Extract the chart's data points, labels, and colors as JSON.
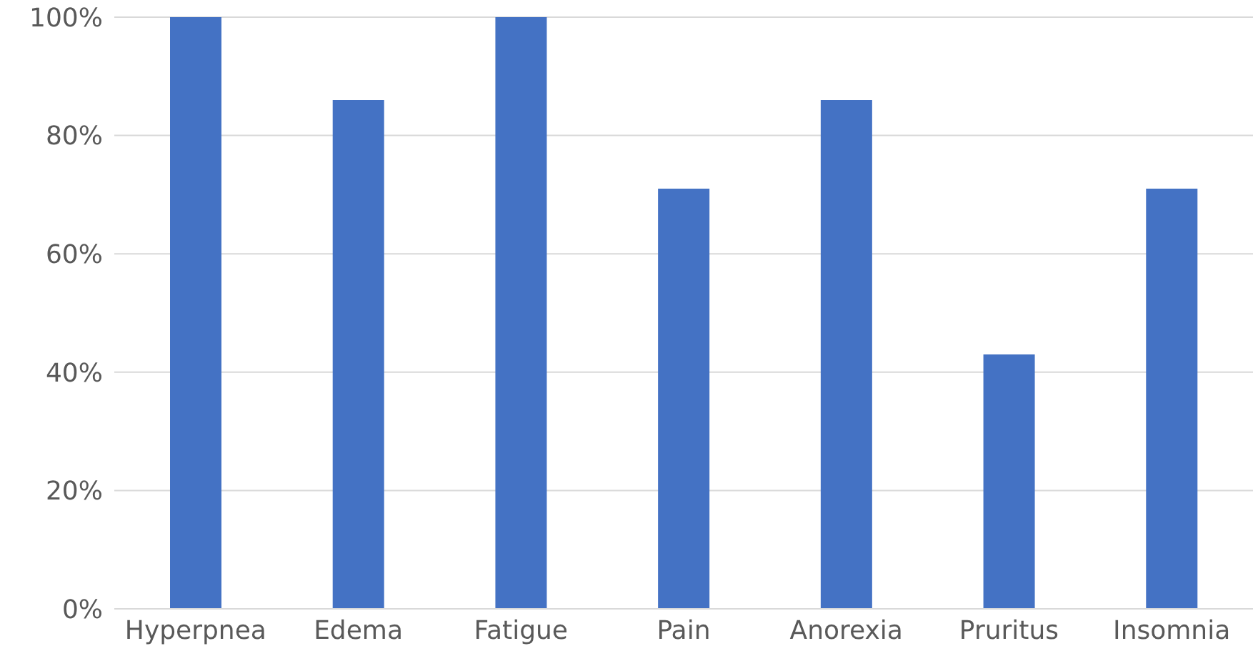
{
  "chart_data": {
    "type": "bar",
    "categories": [
      "Hyperpnea",
      "Edema",
      "Fatigue",
      "Pain",
      "Anorexia",
      "Pruritus",
      "Insomnia"
    ],
    "values": [
      100,
      86,
      100,
      71,
      86,
      43,
      71
    ],
    "color": "#4472c4",
    "ylim": [
      0,
      100
    ],
    "yticks": [
      {
        "value": 0,
        "label": "0%"
      },
      {
        "value": 20,
        "label": "20%"
      },
      {
        "value": 40,
        "label": "40%"
      },
      {
        "value": 60,
        "label": "60%"
      },
      {
        "value": 80,
        "label": "80%"
      },
      {
        "value": 100,
        "label": "100%"
      }
    ],
    "grid": "y"
  }
}
